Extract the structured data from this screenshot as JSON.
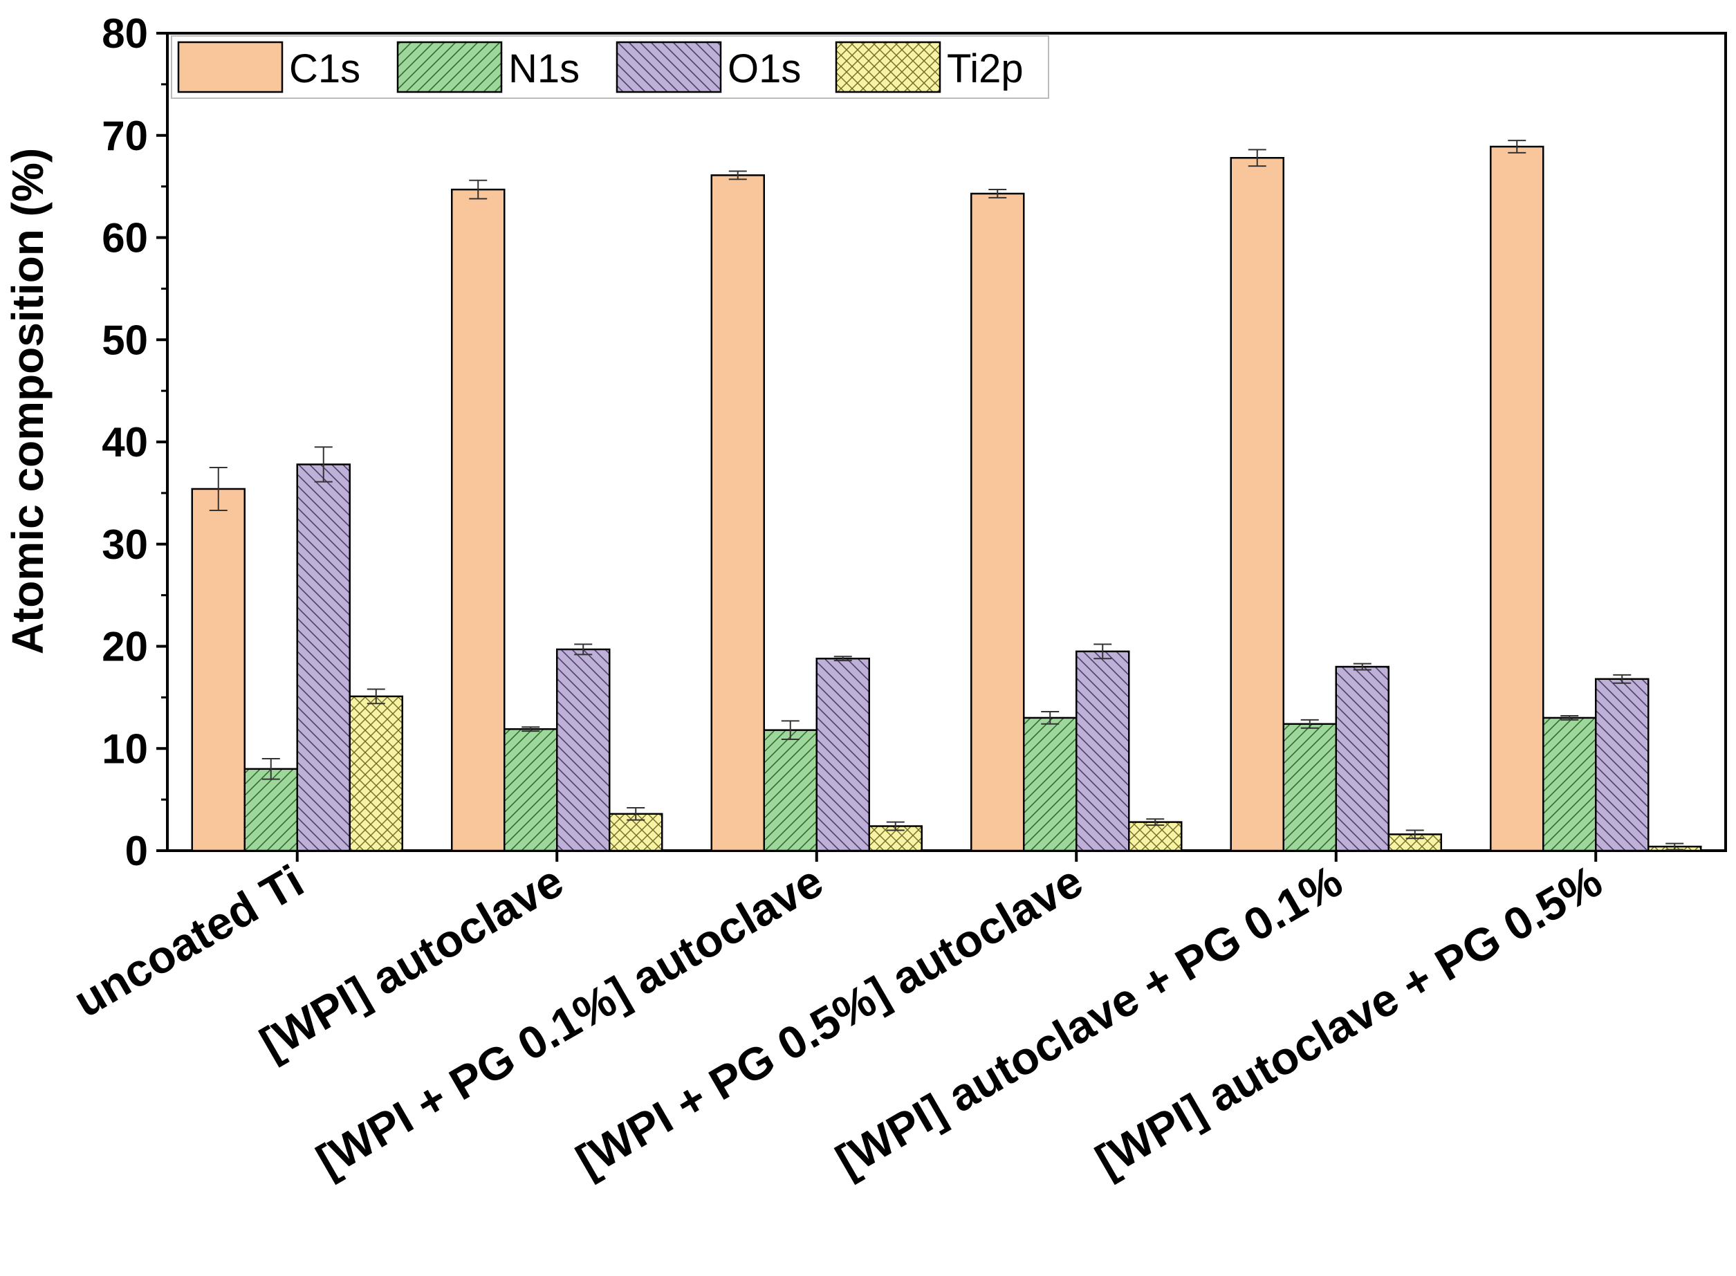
{
  "chart_data": {
    "type": "bar",
    "title": "",
    "xlabel": "",
    "ylabel": "Atomic composition (%)",
    "ylim": [
      0,
      80
    ],
    "yticks": [
      0,
      10,
      20,
      30,
      40,
      50,
      60,
      70,
      80
    ],
    "categories": [
      "uncoated Ti",
      "[WPI] autoclave",
      "[WPI + PG 0.1%] autoclave",
      "[WPI + PG 0.5%] autoclave",
      "[WPI] autoclave + PG 0.1%",
      "[WPI] autoclave + PG 0.5%"
    ],
    "series": [
      {
        "name": "C1s",
        "color": "#f9c59a",
        "pattern": "none",
        "values": [
          35.4,
          64.7,
          66.1,
          64.3,
          67.8,
          68.9
        ],
        "errors": [
          2.1,
          0.9,
          0.4,
          0.4,
          0.8,
          0.6
        ]
      },
      {
        "name": "N1s",
        "color": "#9fd69c",
        "pattern": "diag-up",
        "values": [
          8.0,
          11.9,
          11.8,
          13.0,
          12.4,
          13.0
        ],
        "errors": [
          1.0,
          0.2,
          0.9,
          0.6,
          0.4,
          0.2
        ]
      },
      {
        "name": "O1s",
        "color": "#bfb0d8",
        "pattern": "diag-down",
        "values": [
          37.8,
          19.7,
          18.8,
          19.5,
          18.0,
          16.8
        ],
        "errors": [
          1.7,
          0.5,
          0.2,
          0.7,
          0.3,
          0.4
        ]
      },
      {
        "name": "Ti2p",
        "color": "#f7f3a3",
        "pattern": "cross",
        "values": [
          15.1,
          3.6,
          2.4,
          2.8,
          1.6,
          0.4
        ],
        "errors": [
          0.7,
          0.6,
          0.4,
          0.3,
          0.4,
          0.3
        ]
      }
    ],
    "legend_position": "top-left",
    "grid": false
  }
}
